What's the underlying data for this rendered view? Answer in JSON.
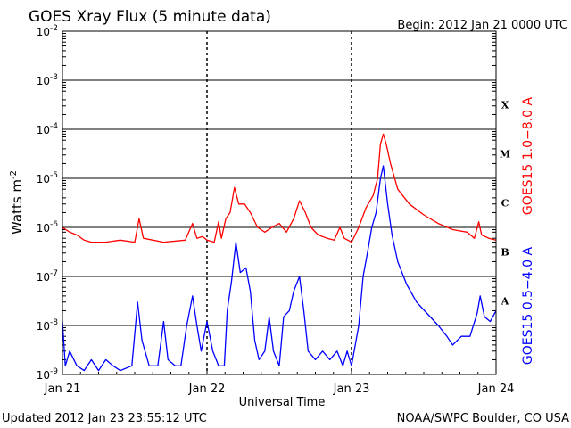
{
  "chart_data": {
    "type": "line",
    "title": "GOES Xray Flux (5 minute data)",
    "begin_label": "Begin:  2012 Jan 21 0000 UTC",
    "xlabel": "Universal Time",
    "ylabel_base": "Watts m",
    "ylabel_exp": "-2",
    "y_scale": "log",
    "ylim": [
      1e-09,
      0.01
    ],
    "y_ticks": [
      {
        "base": "10",
        "exp": "-9",
        "value": 1e-09
      },
      {
        "base": "10",
        "exp": "-8",
        "value": 1e-08
      },
      {
        "base": "10",
        "exp": "-7",
        "value": 1e-07
      },
      {
        "base": "10",
        "exp": "-6",
        "value": 1e-06
      },
      {
        "base": "10",
        "exp": "-5",
        "value": 1e-05
      },
      {
        "base": "10",
        "exp": "-4",
        "value": 0.0001
      },
      {
        "base": "10",
        "exp": "-3",
        "value": 0.001
      },
      {
        "base": "10",
        "exp": "-2",
        "value": 0.01
      }
    ],
    "x_ticks": [
      "Jan 21",
      "Jan 22",
      "Jan 23",
      "Jan 24"
    ],
    "xlim_days": [
      0,
      3
    ],
    "flare_classes": [
      {
        "label": "A",
        "value": 1e-08
      },
      {
        "label": "B",
        "value": 1e-07
      },
      {
        "label": "C",
        "value": 1e-06
      },
      {
        "label": "M",
        "value": 1e-05
      },
      {
        "label": "X",
        "value": 0.0001
      }
    ],
    "grid": true,
    "series": [
      {
        "name": "GOES15 1.0−8.0 A",
        "color": "#ff0000",
        "points": [
          [
            0.0,
            1e-06
          ],
          [
            0.05,
            8e-07
          ],
          [
            0.1,
            7e-07
          ],
          [
            0.15,
            5.5e-07
          ],
          [
            0.2,
            5e-07
          ],
          [
            0.3,
            5e-07
          ],
          [
            0.4,
            5.5e-07
          ],
          [
            0.5,
            5e-07
          ],
          [
            0.53,
            1.5e-06
          ],
          [
            0.56,
            6e-07
          ],
          [
            0.7,
            5e-07
          ],
          [
            0.85,
            5.5e-07
          ],
          [
            0.9,
            1.2e-06
          ],
          [
            0.93,
            6e-07
          ],
          [
            0.97,
            6.5e-07
          ],
          [
            1.0,
            5.5e-07
          ],
          [
            1.05,
            5e-07
          ],
          [
            1.08,
            1.3e-06
          ],
          [
            1.1,
            6e-07
          ],
          [
            1.13,
            1.5e-06
          ],
          [
            1.16,
            2e-06
          ],
          [
            1.19,
            6.5e-06
          ],
          [
            1.22,
            3e-06
          ],
          [
            1.26,
            3e-06
          ],
          [
            1.3,
            2e-06
          ],
          [
            1.35,
            1e-06
          ],
          [
            1.4,
            8e-07
          ],
          [
            1.45,
            1e-06
          ],
          [
            1.5,
            1.2e-06
          ],
          [
            1.55,
            8e-07
          ],
          [
            1.6,
            1.5e-06
          ],
          [
            1.64,
            3.5e-06
          ],
          [
            1.68,
            2e-06
          ],
          [
            1.72,
            1e-06
          ],
          [
            1.77,
            7e-07
          ],
          [
            1.83,
            6e-07
          ],
          [
            1.88,
            5.5e-07
          ],
          [
            1.92,
            1e-06
          ],
          [
            1.95,
            6e-07
          ],
          [
            2.0,
            5e-07
          ],
          [
            2.05,
            1e-06
          ],
          [
            2.1,
            2.5e-06
          ],
          [
            2.15,
            4.5e-06
          ],
          [
            2.18,
            1e-05
          ],
          [
            2.2,
            5e-05
          ],
          [
            2.22,
            8e-05
          ],
          [
            2.24,
            5e-05
          ],
          [
            2.27,
            2e-05
          ],
          [
            2.32,
            6e-06
          ],
          [
            2.4,
            3e-06
          ],
          [
            2.5,
            1.8e-06
          ],
          [
            2.6,
            1.2e-06
          ],
          [
            2.7,
            9e-07
          ],
          [
            2.8,
            8e-07
          ],
          [
            2.85,
            6e-07
          ],
          [
            2.88,
            1.3e-06
          ],
          [
            2.9,
            7e-07
          ],
          [
            2.95,
            6e-07
          ],
          [
            3.0,
            5.5e-07
          ]
        ]
      },
      {
        "name": "GOES15 0.5−4.0 A",
        "color": "#0000ff",
        "points": [
          [
            0.0,
            1.2e-08
          ],
          [
            0.02,
            1.5e-09
          ],
          [
            0.05,
            3e-09
          ],
          [
            0.1,
            1.5e-09
          ],
          [
            0.15,
            1.2e-09
          ],
          [
            0.2,
            2e-09
          ],
          [
            0.25,
            1.2e-09
          ],
          [
            0.3,
            2e-09
          ],
          [
            0.35,
            1.5e-09
          ],
          [
            0.4,
            1.2e-09
          ],
          [
            0.48,
            1.5e-09
          ],
          [
            0.52,
            3e-08
          ],
          [
            0.55,
            5e-09
          ],
          [
            0.6,
            1.5e-09
          ],
          [
            0.66,
            1.5e-09
          ],
          [
            0.7,
            1.2e-08
          ],
          [
            0.73,
            2e-09
          ],
          [
            0.78,
            1.5e-09
          ],
          [
            0.82,
            1.5e-09
          ],
          [
            0.86,
            1e-08
          ],
          [
            0.9,
            4e-08
          ],
          [
            0.93,
            1e-08
          ],
          [
            0.96,
            3e-09
          ],
          [
            1.0,
            1.2e-08
          ],
          [
            1.04,
            3e-09
          ],
          [
            1.08,
            1.5e-09
          ],
          [
            1.12,
            1.5e-09
          ],
          [
            1.14,
            2e-08
          ],
          [
            1.17,
            8e-08
          ],
          [
            1.2,
            5e-07
          ],
          [
            1.23,
            1.2e-07
          ],
          [
            1.27,
            1.5e-07
          ],
          [
            1.3,
            5e-08
          ],
          [
            1.33,
            5e-09
          ],
          [
            1.36,
            2e-09
          ],
          [
            1.4,
            3e-09
          ],
          [
            1.43,
            1.5e-08
          ],
          [
            1.46,
            3e-09
          ],
          [
            1.5,
            1.5e-09
          ],
          [
            1.53,
            1.5e-08
          ],
          [
            1.57,
            2e-08
          ],
          [
            1.6,
            5e-08
          ],
          [
            1.64,
            1e-07
          ],
          [
            1.67,
            2e-08
          ],
          [
            1.7,
            3e-09
          ],
          [
            1.75,
            2e-09
          ],
          [
            1.8,
            3e-09
          ],
          [
            1.85,
            2e-09
          ],
          [
            1.9,
            3e-09
          ],
          [
            1.94,
            1.5e-09
          ],
          [
            1.97,
            3e-09
          ],
          [
            2.0,
            1.5e-09
          ],
          [
            2.05,
            1e-08
          ],
          [
            2.08,
            1e-07
          ],
          [
            2.11,
            3e-07
          ],
          [
            2.14,
            1e-06
          ],
          [
            2.17,
            2e-06
          ],
          [
            2.2,
            1e-05
          ],
          [
            2.22,
            1.8e-05
          ],
          [
            2.25,
            3e-06
          ],
          [
            2.28,
            7e-07
          ],
          [
            2.32,
            2e-07
          ],
          [
            2.38,
            7e-08
          ],
          [
            2.45,
            3e-08
          ],
          [
            2.52,
            1.8e-08
          ],
          [
            2.6,
            1e-08
          ],
          [
            2.66,
            6e-09
          ],
          [
            2.7,
            4e-09
          ],
          [
            2.76,
            6e-09
          ],
          [
            2.82,
            6e-09
          ],
          [
            2.87,
            1.8e-08
          ],
          [
            2.89,
            4e-08
          ],
          [
            2.92,
            1.5e-08
          ],
          [
            2.96,
            1.2e-08
          ],
          [
            3.0,
            2e-08
          ]
        ]
      }
    ],
    "footer_left": "Updated 2012 Jan 23 23:55:12 UTC",
    "footer_right": "NOAA/SWPC Boulder, CO USA"
  }
}
